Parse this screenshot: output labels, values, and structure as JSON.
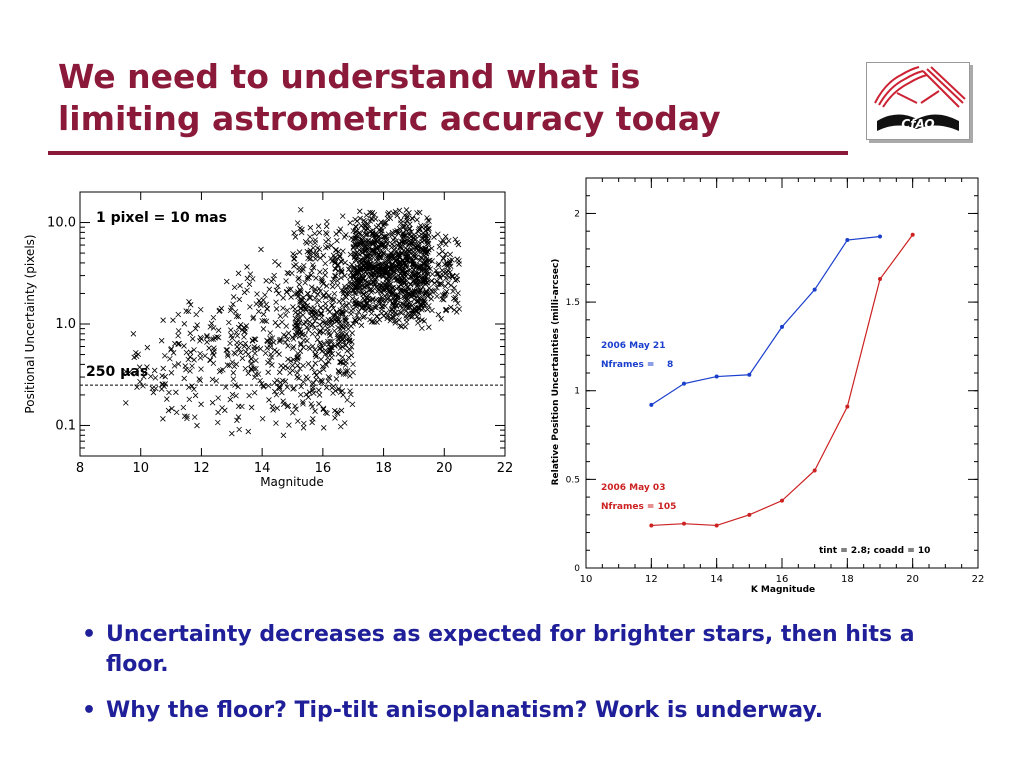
{
  "slide": {
    "title_line1": "We need to understand what is",
    "title_line2": "limiting astrometric accuracy today",
    "logo_text": "CfAO",
    "accent_color": "#8b1a3a",
    "bullet_color": "#1f1f99"
  },
  "bullets": [
    {
      "marker": "•",
      "text": "Uncertainty decreases as expected for brighter stars, then hits a floor."
    },
    {
      "marker": "•",
      "text": "Why the floor?  Tip-tilt anisoplanatism?  Work is underway."
    }
  ],
  "chart_data": [
    {
      "type": "scatter",
      "marker": "x",
      "xlabel": "Magnitude",
      "ylabel": "Positional Uncertainty (pixels)",
      "xlim": [
        8,
        22
      ],
      "ylim": [
        0.05,
        20
      ],
      "yscale": "log",
      "xticks": [
        8,
        10,
        12,
        14,
        16,
        18,
        20,
        22
      ],
      "yticks": [
        0.1,
        1.0,
        10.0
      ],
      "ytick_labels": [
        "0.1",
        "1.0",
        "10.0"
      ],
      "annotations": [
        {
          "text": "1 pixel = 10 mas"
        },
        {
          "text": "250 µas"
        }
      ],
      "reference_line": {
        "y": 0.25,
        "style": "dashed"
      },
      "point_density": [
        {
          "x_range": [
            9.5,
            11
          ],
          "y_range": [
            0.07,
            1.5
          ],
          "count": 40
        },
        {
          "x_range": [
            11,
            13
          ],
          "y_range": [
            0.08,
            3
          ],
          "count": 110
        },
        {
          "x_range": [
            13,
            15
          ],
          "y_range": [
            0.07,
            6
          ],
          "count": 200
        },
        {
          "x_range": [
            15,
            17
          ],
          "y_range": [
            0.08,
            15
          ],
          "count": 500
        },
        {
          "x_range": [
            17,
            19.5
          ],
          "y_range": [
            0.8,
            15
          ],
          "count": 1000
        },
        {
          "x_range": [
            19.5,
            20.5
          ],
          "y_range": [
            1,
            8
          ],
          "count": 100
        }
      ]
    },
    {
      "type": "line",
      "xlabel": "K Magnitude",
      "ylabel": "Relative Position Uncertainties (milli-arcsec)",
      "xlim": [
        10,
        22
      ],
      "ylim": [
        0,
        2.2
      ],
      "xticks": [
        10,
        12,
        14,
        16,
        18,
        20,
        22
      ],
      "yticks": [
        0,
        0.5,
        1,
        1.5,
        2
      ],
      "ytick_labels": [
        "0",
        "0.5",
        "1",
        "1.5",
        "2"
      ],
      "series": [
        {
          "name": "2006 May 21",
          "note": "Nframes =    8",
          "color": "#1a3fcc",
          "x": [
            12,
            13,
            14,
            15,
            16,
            17,
            18,
            19
          ],
          "y": [
            0.92,
            1.04,
            1.08,
            1.09,
            1.36,
            1.57,
            1.85,
            1.87
          ]
        },
        {
          "name": "2006 May 03",
          "note": "Nframes = 105",
          "color": "#cc2222",
          "x": [
            12,
            13,
            14,
            15,
            16,
            17,
            18,
            19,
            20
          ],
          "y": [
            0.24,
            0.25,
            0.24,
            0.3,
            0.38,
            0.55,
            0.91,
            1.63,
            1.88
          ]
        }
      ],
      "annotation": "tint = 2.8; coadd = 10"
    }
  ]
}
